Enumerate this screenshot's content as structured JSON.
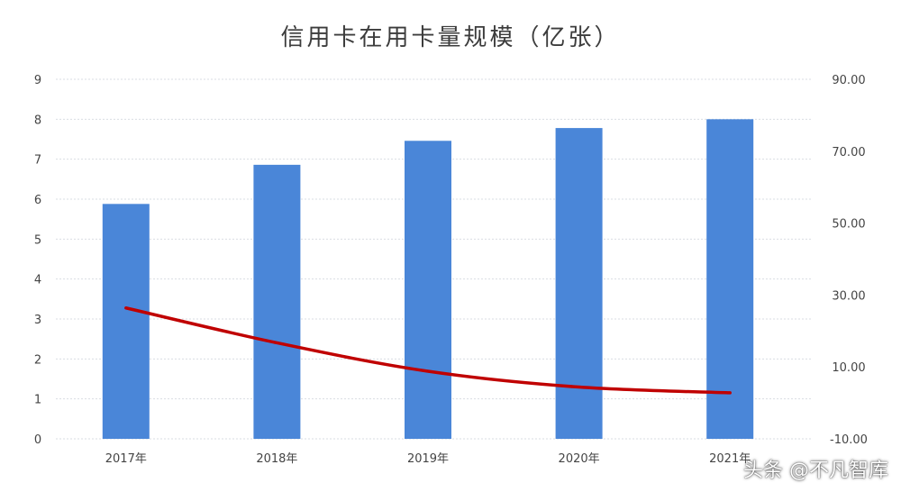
{
  "chart_data": {
    "type": "bar",
    "title": "信用卡在用卡量规模（亿张）",
    "categories": [
      "2017年",
      "2018年",
      "2019年",
      "2020年",
      "2021年"
    ],
    "series": [
      {
        "values": [
          5.88,
          6.86,
          7.46,
          7.78,
          8.0
        ],
        "axis": "left",
        "kind": "bar"
      },
      {
        "values": [
          26.4,
          16.7,
          8.8,
          4.4,
          2.8
        ],
        "axis": "right",
        "kind": "line"
      }
    ],
    "left_axis": {
      "ylim": [
        0,
        9
      ],
      "ticks": [
        "0",
        "1",
        "2",
        "3",
        "4",
        "5",
        "6",
        "7",
        "8",
        "9"
      ]
    },
    "right_axis": {
      "ylim": [
        -10,
        90
      ],
      "ticks": [
        "-10.00",
        "10.00",
        "30.00",
        "50.00",
        "70.00",
        "90.00"
      ]
    },
    "grid": true,
    "colors": {
      "bar": "#4a86d8",
      "line": "#c00000",
      "grid": "#d9dde3"
    }
  },
  "watermark": "头条 @不凡智库"
}
